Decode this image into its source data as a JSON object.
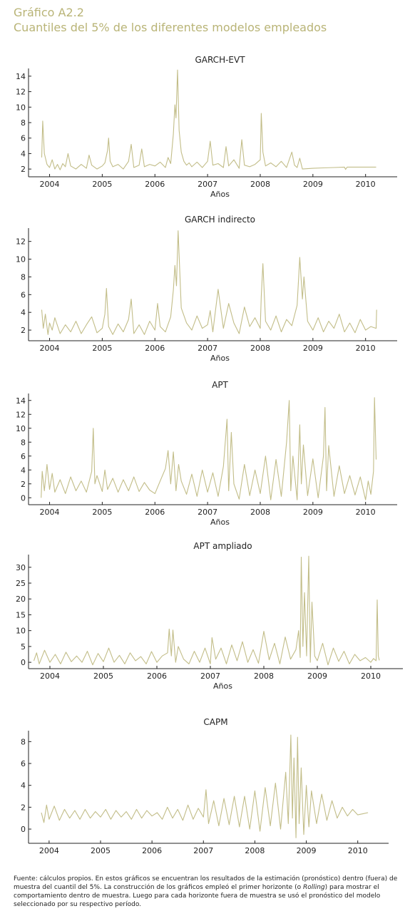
{
  "header": {
    "figure_label": "Gráfico A2.2",
    "title": "Cuantiles del 5% de los diferentes modelos empleados"
  },
  "series_color": "#c2bd88",
  "header_color": "#b9b477",
  "footnote": {
    "before_italic": "Fuente: cálculos propios. En estos gráficos se encuentran los resultados de la estimación (pronóstico) dentro (fuera) de muestra del cuantil del 5%. La construcción de los gráficos empleó el primer horizonte (o ",
    "italic": "Rolling",
    "after_italic": ") para mostrar el comportamiento dentro de muestra. Luego para cada horizonte fuera de muestra se usó el pronóstico del modelo seleccionado por su respectivo período."
  },
  "chart_data": [
    {
      "type": "line",
      "title": "GARCH-EVT",
      "xlabel": "Años",
      "ylabel": "",
      "xlim": [
        2003.6,
        2010.6
      ],
      "ylim": [
        1,
        15
      ],
      "yticks": [
        2,
        4,
        6,
        8,
        10,
        12,
        14
      ],
      "xticks": [
        2004,
        2005,
        2006,
        2007,
        2008,
        2009,
        2010
      ],
      "series": [
        {
          "x": [
            2003.85,
            2003.87,
            2003.9,
            2003.95,
            2004.0,
            2004.05,
            2004.1,
            2004.15,
            2004.2,
            2004.25,
            2004.3,
            2004.35,
            2004.4,
            2004.5,
            2004.6,
            2004.7,
            2004.75,
            2004.8,
            2004.9,
            2005.0,
            2005.05,
            2005.1,
            2005.12,
            2005.15,
            2005.2,
            2005.3,
            2005.4,
            2005.5,
            2005.55,
            2005.6,
            2005.7,
            2005.75,
            2005.8,
            2005.9,
            2006.0,
            2006.1,
            2006.2,
            2006.25,
            2006.3,
            2006.35,
            2006.38,
            2006.4,
            2006.43,
            2006.46,
            2006.5,
            2006.55,
            2006.6,
            2006.65,
            2006.7,
            2006.8,
            2006.9,
            2007.0,
            2007.05,
            2007.1,
            2007.2,
            2007.3,
            2007.35,
            2007.4,
            2007.5,
            2007.6,
            2007.65,
            2007.7,
            2007.8,
            2007.9,
            2008.0,
            2008.02,
            2008.05,
            2008.1,
            2008.2,
            2008.3,
            2008.4,
            2008.5,
            2008.6,
            2008.65,
            2008.7,
            2008.75,
            2008.8,
            2009.0,
            2009.2,
            2009.4,
            2009.6,
            2009.62,
            2009.65,
            2009.8,
            2010.0,
            2010.2
          ],
          "y": [
            3.5,
            8.2,
            4.0,
            2.6,
            2.2,
            3.2,
            2.0,
            2.6,
            1.9,
            2.7,
            2.3,
            4.0,
            2.4,
            2.0,
            2.6,
            2.1,
            3.8,
            2.5,
            2.0,
            2.4,
            2.8,
            4.4,
            6.0,
            3.0,
            2.3,
            2.6,
            2.0,
            3.0,
            5.2,
            2.2,
            2.5,
            4.6,
            2.3,
            2.6,
            2.4,
            2.9,
            2.2,
            3.5,
            2.7,
            6.5,
            10.3,
            8.6,
            14.8,
            7.0,
            4.2,
            3.0,
            2.5,
            2.8,
            2.3,
            2.9,
            2.2,
            3.0,
            5.6,
            2.5,
            2.7,
            2.2,
            4.9,
            2.4,
            3.2,
            2.1,
            5.8,
            2.5,
            2.3,
            2.6,
            3.2,
            9.2,
            4.2,
            2.4,
            2.8,
            2.3,
            3.0,
            2.2,
            4.2,
            2.5,
            2.2,
            3.4,
            2.0,
            2.1,
            2.15,
            2.2,
            2.25,
            1.95,
            2.25,
            2.25,
            2.25,
            2.25
          ]
        }
      ]
    },
    {
      "type": "line",
      "title": "GARCH indirecto",
      "xlabel": "Años",
      "ylabel": "",
      "xlim": [
        2003.6,
        2010.6
      ],
      "ylim": [
        0.8,
        13.5
      ],
      "yticks": [
        2,
        4,
        6,
        8,
        10,
        12
      ],
      "xticks": [
        2004,
        2005,
        2006,
        2007,
        2008,
        2009,
        2010
      ],
      "series": [
        {
          "x": [
            2003.85,
            2003.88,
            2003.92,
            2003.97,
            2004.0,
            2004.05,
            2004.1,
            2004.2,
            2004.3,
            2004.4,
            2004.5,
            2004.6,
            2004.7,
            2004.8,
            2004.9,
            2005.0,
            2005.05,
            2005.08,
            2005.12,
            2005.2,
            2005.3,
            2005.4,
            2005.5,
            2005.55,
            2005.6,
            2005.7,
            2005.8,
            2005.9,
            2006.0,
            2006.05,
            2006.1,
            2006.2,
            2006.3,
            2006.35,
            2006.38,
            2006.41,
            2006.44,
            2006.5,
            2006.6,
            2006.7,
            2006.8,
            2006.9,
            2007.0,
            2007.05,
            2007.1,
            2007.2,
            2007.3,
            2007.4,
            2007.5,
            2007.6,
            2007.7,
            2007.8,
            2007.9,
            2008.0,
            2008.02,
            2008.05,
            2008.1,
            2008.2,
            2008.3,
            2008.4,
            2008.5,
            2008.6,
            2008.7,
            2008.75,
            2008.8,
            2008.83,
            2008.9,
            2009.0,
            2009.1,
            2009.2,
            2009.3,
            2009.4,
            2009.5,
            2009.6,
            2009.7,
            2009.8,
            2009.9,
            2010.0,
            2010.1,
            2010.2,
            2010.21
          ],
          "y": [
            4.3,
            2.2,
            3.8,
            1.5,
            2.8,
            2.0,
            3.4,
            1.6,
            2.6,
            1.8,
            3.0,
            1.6,
            2.6,
            3.5,
            1.7,
            2.2,
            3.8,
            6.7,
            2.4,
            1.5,
            2.7,
            1.8,
            3.2,
            5.5,
            1.6,
            2.6,
            1.5,
            3.0,
            2.0,
            5.0,
            2.4,
            1.8,
            3.5,
            6.5,
            9.3,
            7.0,
            13.2,
            4.5,
            2.8,
            2.0,
            3.6,
            2.2,
            2.6,
            4.2,
            1.8,
            6.6,
            2.2,
            5.0,
            2.8,
            1.6,
            4.6,
            2.4,
            3.4,
            2.2,
            5.8,
            9.5,
            3.0,
            2.0,
            3.6,
            1.8,
            3.2,
            2.5,
            4.8,
            10.2,
            5.5,
            8.0,
            3.0,
            2.0,
            3.4,
            1.8,
            3.0,
            2.2,
            3.8,
            1.8,
            2.8,
            1.7,
            3.2,
            2.0,
            2.4,
            2.2,
            4.3
          ]
        }
      ]
    },
    {
      "type": "line",
      "title": "APT",
      "xlabel": "Años",
      "ylabel": "",
      "xlim": [
        2003.6,
        2010.6
      ],
      "ylim": [
        -1,
        15
      ],
      "yticks": [
        0,
        2,
        4,
        6,
        8,
        10,
        12,
        14
      ],
      "xticks": [
        2004,
        2005,
        2006,
        2007,
        2008,
        2009,
        2010
      ],
      "series": [
        {
          "x": [
            2003.84,
            2003.86,
            2003.9,
            2003.95,
            2004.0,
            2004.05,
            2004.1,
            2004.2,
            2004.3,
            2004.4,
            2004.5,
            2004.6,
            2004.7,
            2004.8,
            2004.83,
            2004.86,
            2004.9,
            2005.0,
            2005.05,
            2005.1,
            2005.2,
            2005.3,
            2005.4,
            2005.5,
            2005.6,
            2005.7,
            2005.8,
            2005.9,
            2006.0,
            2006.1,
            2006.2,
            2006.25,
            2006.3,
            2006.35,
            2006.4,
            2006.45,
            2006.5,
            2006.6,
            2006.7,
            2006.8,
            2006.9,
            2007.0,
            2007.1,
            2007.2,
            2007.3,
            2007.37,
            2007.4,
            2007.45,
            2007.5,
            2007.6,
            2007.7,
            2007.8,
            2007.9,
            2008.0,
            2008.1,
            2008.2,
            2008.3,
            2008.4,
            2008.5,
            2008.55,
            2008.58,
            2008.62,
            2008.7,
            2008.75,
            2008.78,
            2008.82,
            2008.9,
            2009.0,
            2009.1,
            2009.2,
            2009.23,
            2009.26,
            2009.3,
            2009.4,
            2009.5,
            2009.6,
            2009.7,
            2009.8,
            2009.9,
            2010.0,
            2010.05,
            2010.1,
            2010.15,
            2010.17,
            2010.2
          ],
          "y": [
            0.0,
            3.8,
            1.0,
            4.8,
            1.2,
            3.5,
            0.8,
            2.6,
            0.6,
            3.0,
            1.0,
            2.4,
            0.8,
            3.8,
            10.0,
            2.0,
            3.2,
            0.9,
            4.0,
            1.2,
            2.8,
            0.8,
            2.6,
            1.0,
            3.0,
            0.9,
            2.2,
            1.1,
            0.6,
            2.4,
            4.2,
            6.8,
            2.0,
            6.6,
            1.0,
            4.8,
            2.4,
            0.5,
            3.4,
            0.2,
            4.0,
            0.8,
            3.6,
            0.2,
            4.5,
            11.3,
            1.0,
            9.4,
            2.0,
            -0.2,
            4.8,
            0.3,
            4.0,
            0.6,
            6.0,
            -0.3,
            5.5,
            0.2,
            8.0,
            14.0,
            1.0,
            6.0,
            -0.3,
            10.5,
            2.0,
            7.6,
            0.3,
            5.6,
            0.0,
            6.0,
            13.0,
            1.0,
            7.5,
            0.2,
            4.6,
            0.6,
            3.2,
            0.4,
            3.0,
            -0.3,
            2.4,
            0.5,
            3.8,
            14.4,
            5.5
          ]
        }
      ]
    },
    {
      "type": "line",
      "title": "APT ampliado",
      "xlabel": "Años",
      "ylabel": "",
      "xlim": [
        2003.6,
        2010.6
      ],
      "ylim": [
        -2,
        34
      ],
      "yticks": [
        0,
        5,
        10,
        15,
        20,
        25,
        30
      ],
      "xticks": [
        2004,
        2005,
        2006,
        2007,
        2008,
        2009,
        2010
      ],
      "series": [
        {
          "x": [
            2003.7,
            2003.75,
            2003.8,
            2003.9,
            2004.0,
            2004.1,
            2004.2,
            2004.3,
            2004.4,
            2004.5,
            2004.6,
            2004.7,
            2004.8,
            2004.9,
            2005.0,
            2005.1,
            2005.2,
            2005.3,
            2005.4,
            2005.5,
            2005.6,
            2005.7,
            2005.8,
            2005.9,
            2006.0,
            2006.1,
            2006.2,
            2006.23,
            2006.27,
            2006.3,
            2006.35,
            2006.4,
            2006.5,
            2006.6,
            2006.7,
            2006.8,
            2006.9,
            2007.0,
            2007.03,
            2007.1,
            2007.2,
            2007.3,
            2007.4,
            2007.5,
            2007.6,
            2007.7,
            2007.8,
            2007.9,
            2008.0,
            2008.1,
            2008.2,
            2008.3,
            2008.4,
            2008.5,
            2008.6,
            2008.65,
            2008.68,
            2008.7,
            2008.73,
            2008.76,
            2008.8,
            2008.84,
            2008.87,
            2008.9,
            2008.95,
            2009.0,
            2009.1,
            2009.2,
            2009.3,
            2009.4,
            2009.5,
            2009.6,
            2009.7,
            2009.8,
            2009.9,
            2010.0,
            2010.05,
            2010.1,
            2010.12,
            2010.14,
            2010.16
          ],
          "y": [
            0.5,
            3.0,
            -0.5,
            3.8,
            0.0,
            2.5,
            -0.5,
            3.2,
            0.2,
            2.0,
            0.0,
            3.5,
            -0.8,
            2.8,
            0.2,
            4.5,
            0.0,
            2.2,
            -0.5,
            3.0,
            0.5,
            1.8,
            -0.5,
            3.4,
            0.0,
            2.0,
            3.0,
            10.5,
            2.0,
            10.2,
            0.0,
            5.0,
            1.0,
            -0.5,
            3.5,
            0.0,
            4.5,
            -0.5,
            7.8,
            1.0,
            4.5,
            -0.5,
            5.5,
            0.5,
            6.5,
            0.0,
            4.0,
            -0.3,
            9.8,
            0.8,
            6.0,
            -0.5,
            8.0,
            1.0,
            4.0,
            10.0,
            1.5,
            33.2,
            5.0,
            22.0,
            2.0,
            33.5,
            0.0,
            19.0,
            2.0,
            0.5,
            6.0,
            -0.8,
            4.5,
            0.3,
            3.5,
            -0.5,
            2.5,
            0.5,
            1.5,
            0.0,
            1.2,
            0.5,
            19.7,
            2.0,
            0.6
          ]
        }
      ]
    },
    {
      "type": "line",
      "title": "CAPM",
      "xlabel": "",
      "ylabel": "",
      "xlim": [
        2003.6,
        2010.6
      ],
      "ylim": [
        -1.3,
        9
      ],
      "yticks": [
        0,
        2,
        4,
        6,
        8
      ],
      "xticks": [
        2004,
        2005,
        2006,
        2007,
        2008,
        2009,
        2010
      ],
      "series": [
        {
          "x": [
            2003.85,
            2003.9,
            2003.95,
            2004.0,
            2004.1,
            2004.2,
            2004.3,
            2004.4,
            2004.5,
            2004.6,
            2004.7,
            2004.8,
            2004.9,
            2005.0,
            2005.1,
            2005.2,
            2005.3,
            2005.4,
            2005.5,
            2005.6,
            2005.7,
            2005.8,
            2005.9,
            2006.0,
            2006.1,
            2006.2,
            2006.3,
            2006.4,
            2006.5,
            2006.6,
            2006.7,
            2006.8,
            2006.9,
            2007.0,
            2007.05,
            2007.1,
            2007.2,
            2007.3,
            2007.4,
            2007.5,
            2007.6,
            2007.7,
            2007.8,
            2007.9,
            2008.0,
            2008.1,
            2008.2,
            2008.3,
            2008.4,
            2008.5,
            2008.6,
            2008.65,
            2008.7,
            2008.73,
            2008.76,
            2008.8,
            2008.83,
            2008.86,
            2008.9,
            2008.95,
            2009.0,
            2009.05,
            2009.1,
            2009.2,
            2009.3,
            2009.4,
            2009.5,
            2009.6,
            2009.7,
            2009.8,
            2009.9,
            2010.0,
            2010.1,
            2010.2
          ],
          "y": [
            1.5,
            0.6,
            2.2,
            0.9,
            2.1,
            0.8,
            1.8,
            1.0,
            1.7,
            0.9,
            1.8,
            1.0,
            1.6,
            1.1,
            1.8,
            0.9,
            1.7,
            1.1,
            1.6,
            0.9,
            1.8,
            1.0,
            1.7,
            1.2,
            1.5,
            0.9,
            2.0,
            1.0,
            1.8,
            0.8,
            2.2,
            0.9,
            1.9,
            1.1,
            3.6,
            0.5,
            2.6,
            0.3,
            2.8,
            0.4,
            3.0,
            0.2,
            3.0,
            0.0,
            3.5,
            -0.2,
            3.8,
            0.3,
            4.2,
            0.0,
            5.2,
            0.5,
            8.6,
            1.0,
            6.5,
            -0.8,
            8.4,
            0.5,
            5.6,
            -0.5,
            4.0,
            0.2,
            3.5,
            0.5,
            3.2,
            0.8,
            2.6,
            1.0,
            2.0,
            1.2,
            1.8,
            1.3,
            1.4,
            1.5
          ]
        }
      ]
    }
  ]
}
